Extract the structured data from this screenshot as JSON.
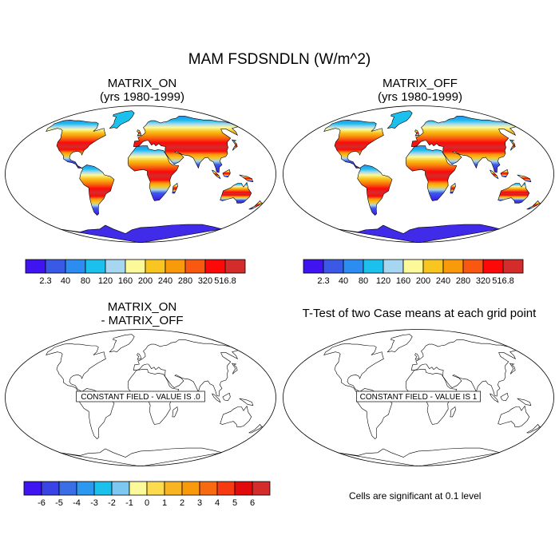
{
  "figure": {
    "title": "MAM FSDSNDLN (W/m^2)"
  },
  "panels": [
    {
      "id": "matrix-on",
      "title_line1": "MATRIX_ON",
      "title_line2": "(yrs 1980-1999)",
      "field": "filled"
    },
    {
      "id": "matrix-off",
      "title_line1": "MATRIX_OFF",
      "title_line2": "(yrs 1980-1999)",
      "field": "filled"
    },
    {
      "id": "difference",
      "title_line1": "MATRIX_ON",
      "title_line2": "- MATRIX_OFF",
      "constant_label": "CONSTANT FIELD - VALUE IS .0"
    },
    {
      "id": "ttest",
      "title_line1": "T-Test of two Case means at each grid point",
      "constant_label": "CONSTANT FIELD - VALUE IS 1"
    }
  ],
  "colorbars": {
    "absolute": {
      "colors": [
        "#3f14f0",
        "#3a5ae6",
        "#2c8cf0",
        "#1cc0ec",
        "#a6d6f0",
        "#fcf99a",
        "#f9c521",
        "#f99a0a",
        "#f85810",
        "#fc0a0a",
        "#d42b2b"
      ],
      "labels": [
        "2.3",
        "40",
        "80",
        "120",
        "160",
        "200",
        "240",
        "280",
        "320",
        "516.8"
      ]
    },
    "difference": {
      "colors": [
        "#3f14f0",
        "#3a43e4",
        "#3a6ee6",
        "#2c98f0",
        "#1cc0ec",
        "#7cc8f0",
        "#fcf99a",
        "#fcdc4e",
        "#f9b421",
        "#f99a0a",
        "#f86a10",
        "#f83a10",
        "#e20a0a",
        "#d42b2b"
      ],
      "labels": [
        "-6",
        "-5",
        "-4",
        "-3",
        "-2",
        "-1",
        "0",
        "1",
        "2",
        "3",
        "4",
        "5",
        "6"
      ]
    }
  },
  "significance_note": "Cells are significant at 0.1 level"
}
